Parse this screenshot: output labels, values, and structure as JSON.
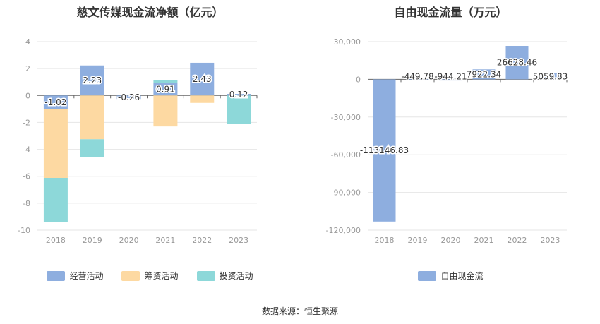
{
  "source_label": "数据来源：恒生聚源",
  "chart_data": [
    {
      "type": "bar",
      "stacked": true,
      "title": "慈文传媒现金流净额（亿元）",
      "categories": [
        "2018",
        "2019",
        "2020",
        "2021",
        "2022",
        "2023"
      ],
      "series": [
        {
          "name": "经营活动",
          "color": "#8eaedf",
          "values": [
            -1.02,
            2.23,
            -0.26,
            0.91,
            2.43,
            0.12
          ]
        },
        {
          "name": "筹资活动",
          "color": "#fdd9a2",
          "values": [
            -5.1,
            -3.25,
            0.0,
            -2.3,
            -0.55,
            0.0
          ]
        },
        {
          "name": "投资活动",
          "color": "#8dd8d9",
          "values": [
            -3.3,
            -1.3,
            0.0,
            0.25,
            0.0,
            -2.1
          ]
        }
      ],
      "data_labels": [
        "-1.02",
        "2.23",
        "-0.26",
        "0.91",
        "2.43",
        "0.12"
      ],
      "ylim": [
        -10,
        4
      ],
      "yticks": [
        4,
        2,
        0,
        -2,
        -4,
        -6,
        -8,
        -10
      ],
      "ytick_labels": [
        "4",
        "2",
        "0",
        "-2",
        "-4",
        "-6",
        "-8",
        "-10"
      ],
      "grid": true,
      "legend_position": "bottom"
    },
    {
      "type": "bar",
      "title": "自由现金流量（万元）",
      "categories": [
        "2018",
        "2019",
        "2020",
        "2021",
        "2022",
        "2023"
      ],
      "series": [
        {
          "name": "自由现金流",
          "color": "#8eaedf",
          "values": [
            -113146.83,
            -449.78,
            -944.21,
            7922.34,
            26628.46,
            5059.83
          ]
        }
      ],
      "data_labels": [
        "-113146.83",
        "-449.78",
        "-944.21",
        "7922.34",
        "26628.46",
        "5059.83"
      ],
      "ylim": [
        -120000,
        30000
      ],
      "yticks": [
        30000,
        0,
        -30000,
        -60000,
        -90000,
        -120000
      ],
      "ytick_labels": [
        "30,000",
        "0",
        "-30,000",
        "-60,000",
        "-90,000",
        "-120,000"
      ],
      "grid": true,
      "legend_position": "bottom"
    }
  ]
}
